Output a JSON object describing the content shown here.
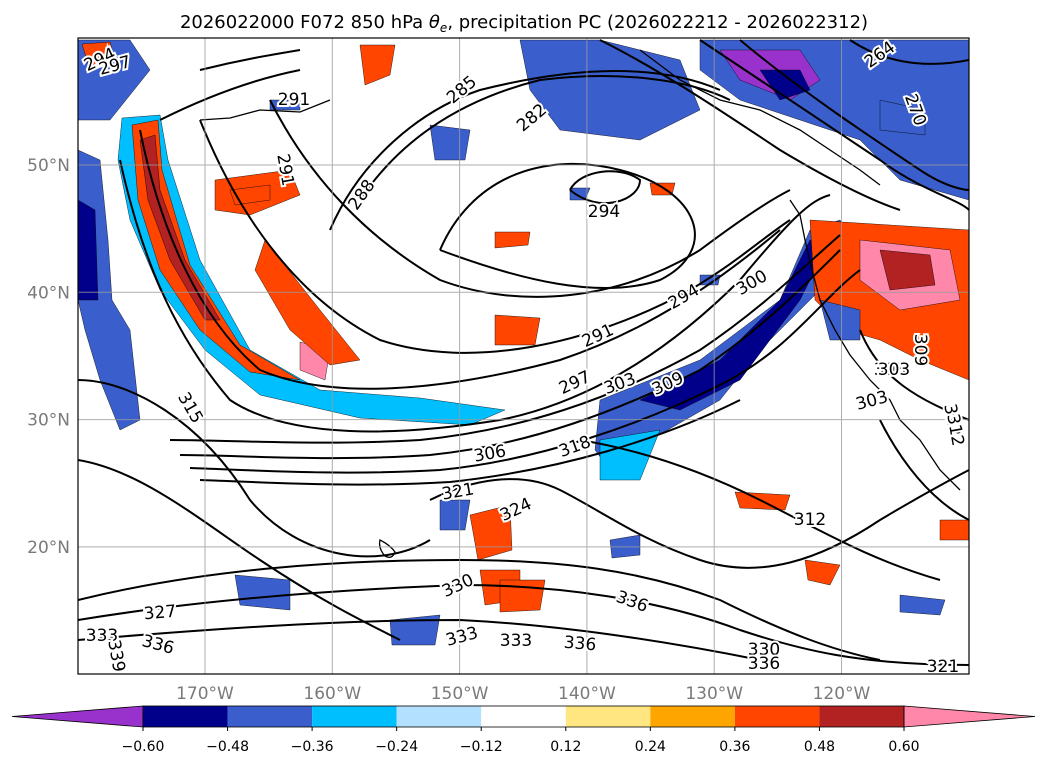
{
  "chart_data": {
    "type": "contour-map",
    "title": "2026022000 F072 850 hPa θe, precipitation PC (2026022212 - 2026022312)",
    "title_main": "2026022000 F072 850 hPa ",
    "title_theta": "θ",
    "title_sub": "e",
    "title_tail": ", precipitation PC (2026022212 - 2026022312)",
    "lat_ticks": [
      {
        "value": 50,
        "label": "50°N"
      },
      {
        "value": 40,
        "label": "40°N"
      },
      {
        "value": 30,
        "label": "30°N"
      },
      {
        "value": 20,
        "label": "20°N"
      }
    ],
    "lon_ticks": [
      {
        "value": -170,
        "label": "170°W"
      },
      {
        "value": -160,
        "label": "160°W"
      },
      {
        "value": -150,
        "label": "150°W"
      },
      {
        "value": -140,
        "label": "140°W"
      },
      {
        "value": -130,
        "label": "130°W"
      },
      {
        "value": -120,
        "label": "120°W"
      }
    ],
    "colorbar": {
      "levels": [
        -0.6,
        -0.48,
        -0.36,
        -0.24,
        -0.12,
        0.12,
        0.24,
        0.36,
        0.48,
        0.6
      ],
      "tick_labels": [
        "−0.60",
        "−0.48",
        "−0.36",
        "−0.24",
        "−0.12",
        "0.12",
        "0.24",
        "0.36",
        "0.48",
        "0.60"
      ],
      "colors": [
        "#9932cc",
        "#00008b",
        "#3a5fcd",
        "#00bfff",
        "#b3e0ff",
        "#ffffff",
        "#ffe680",
        "#ffa500",
        "#ff4500",
        "#b22222",
        "#ff88aa"
      ],
      "extend": "both"
    },
    "contour_labels": [
      {
        "label": "294"
      },
      {
        "label": "297"
      },
      {
        "label": "291"
      },
      {
        "label": "285"
      },
      {
        "label": "288"
      },
      {
        "label": "291"
      },
      {
        "label": "282"
      },
      {
        "label": "264"
      },
      {
        "label": "270"
      },
      {
        "label": "294"
      },
      {
        "label": "294"
      },
      {
        "label": "300"
      },
      {
        "label": "291"
      },
      {
        "label": "297"
      },
      {
        "label": "303"
      },
      {
        "label": "309"
      },
      {
        "label": "303"
      },
      {
        "label": "312"
      },
      {
        "label": "315"
      },
      {
        "label": "306"
      },
      {
        "label": "318"
      },
      {
        "label": "321"
      },
      {
        "label": "324"
      },
      {
        "label": "312"
      },
      {
        "label": "330"
      },
      {
        "label": "327"
      },
      {
        "label": "333"
      },
      {
        "label": "336"
      },
      {
        "label": "333"
      },
      {
        "label": "333"
      },
      {
        "label": "336"
      },
      {
        "label": "336"
      },
      {
        "label": "330"
      },
      {
        "label": "336"
      },
      {
        "label": "321"
      },
      {
        "label": "303"
      },
      {
        "label": "309"
      },
      {
        "label": "303"
      },
      {
        "label": "312"
      },
      {
        "label": "339"
      }
    ]
  }
}
